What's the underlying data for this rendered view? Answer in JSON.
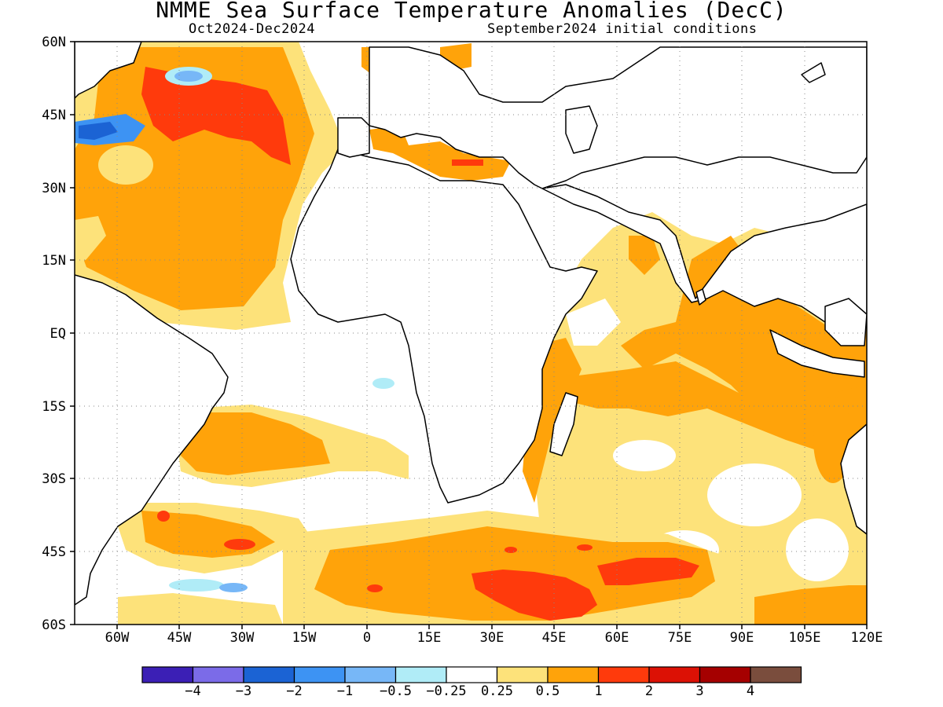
{
  "title": "NMME Sea Surface Temperature Anomalies (DecC)",
  "period": "Oct2024-Dec2024",
  "initial_conditions": "September2024 initial conditions",
  "map": {
    "region": "Atlantic and Indian Oceans",
    "lon_range": [
      -70,
      120
    ],
    "lat_range": [
      -60,
      60
    ],
    "lat_labels": [
      "60N",
      "45N",
      "30N",
      "15N",
      "EQ",
      "15S",
      "30S",
      "45S",
      "60S"
    ],
    "lon_labels": [
      "60W",
      "45W",
      "30W",
      "15W",
      "0",
      "15E",
      "30E",
      "45E",
      "60E",
      "75E",
      "90E",
      "105E",
      "120E"
    ],
    "grid": "dotted"
  },
  "colorbar": {
    "colors": [
      "#3b1fb5",
      "#7b6be8",
      "#1b63d4",
      "#3d93f3",
      "#77b7f7",
      "#b0ecf7",
      "#ffffff",
      "#fde27a",
      "#ffa30a",
      "#ff3a0c",
      "#dc1105",
      "#a50000",
      "#7a4d3d"
    ],
    "labels": [
      "-4",
      "-3",
      "-2",
      "-1",
      "-0.5",
      "-0.25",
      "0.25",
      "0.5",
      "1",
      "2",
      "3",
      "4"
    ]
  }
}
